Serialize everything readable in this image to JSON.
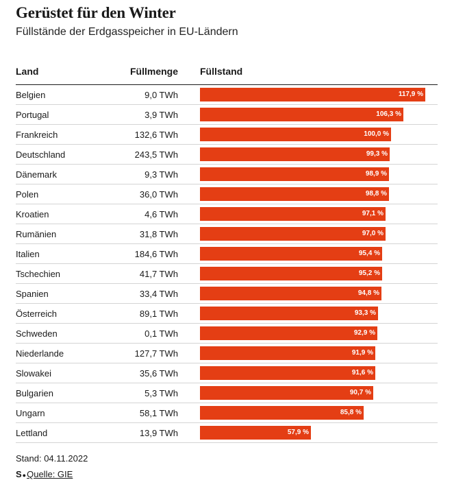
{
  "title": "Gerüstet für den Winter",
  "subtitle": "Füllstände der Erdgasspeicher in EU-Ländern",
  "headers": {
    "land": "Land",
    "menge": "Füllmenge",
    "stand": "Füllstand"
  },
  "bar_color": "#e43e14",
  "rows": [
    {
      "land": "Belgien",
      "menge": "9,0 TWh",
      "stand_label": "117,9 %"
    },
    {
      "land": "Portugal",
      "menge": "3,9 TWh",
      "stand_label": "106,3 %"
    },
    {
      "land": "Frankreich",
      "menge": "132,6 TWh",
      "stand_label": "100,0 %"
    },
    {
      "land": "Deutschland",
      "menge": "243,5 TWh",
      "stand_label": "99,3 %"
    },
    {
      "land": "Dänemark",
      "menge": "9,3 TWh",
      "stand_label": "98,9 %"
    },
    {
      "land": "Polen",
      "menge": "36,0 TWh",
      "stand_label": "98,8 %"
    },
    {
      "land": "Kroatien",
      "menge": "4,6 TWh",
      "stand_label": "97,1 %"
    },
    {
      "land": "Rumänien",
      "menge": "31,8 TWh",
      "stand_label": "97,0 %"
    },
    {
      "land": "Italien",
      "menge": "184,6 TWh",
      "stand_label": "95,4 %"
    },
    {
      "land": "Tschechien",
      "menge": "41,7 TWh",
      "stand_label": "95,2 %"
    },
    {
      "land": "Spanien",
      "menge": "33,4 TWh",
      "stand_label": "94,8 %"
    },
    {
      "land": "Österreich",
      "menge": "89,1 TWh",
      "stand_label": "93,3 %"
    },
    {
      "land": "Schweden",
      "menge": "0,1 TWh",
      "stand_label": "92,9 %"
    },
    {
      "land": "Niederlande",
      "menge": "127,7 TWh",
      "stand_label": "91,9 %"
    },
    {
      "land": "Slowakei",
      "menge": "35,6 TWh",
      "stand_label": "91,6 %"
    },
    {
      "land": "Bulgarien",
      "menge": "5,3 TWh",
      "stand_label": "90,7 %"
    },
    {
      "land": "Ungarn",
      "menge": "58,1 TWh",
      "stand_label": "85,8 %"
    },
    {
      "land": "Lettland",
      "menge": "13,9 TWh",
      "stand_label": "57,9 %"
    }
  ],
  "chart_data": {
    "type": "bar",
    "orientation": "horizontal",
    "categories": [
      "Belgien",
      "Portugal",
      "Frankreich",
      "Deutschland",
      "Dänemark",
      "Polen",
      "Kroatien",
      "Rumänien",
      "Italien",
      "Tschechien",
      "Spanien",
      "Österreich",
      "Schweden",
      "Niederlande",
      "Slowakei",
      "Bulgarien",
      "Ungarn",
      "Lettland"
    ],
    "values": [
      117.9,
      106.3,
      100.0,
      99.3,
      98.9,
      98.8,
      97.1,
      97.0,
      95.4,
      95.2,
      94.8,
      93.3,
      92.9,
      91.9,
      91.6,
      90.7,
      85.8,
      57.9
    ],
    "xlim": [
      0,
      117.9
    ]
  },
  "footer": {
    "stand": "Stand: 04.11.2022",
    "logo": "S",
    "source_label": "Quelle: GIE"
  }
}
